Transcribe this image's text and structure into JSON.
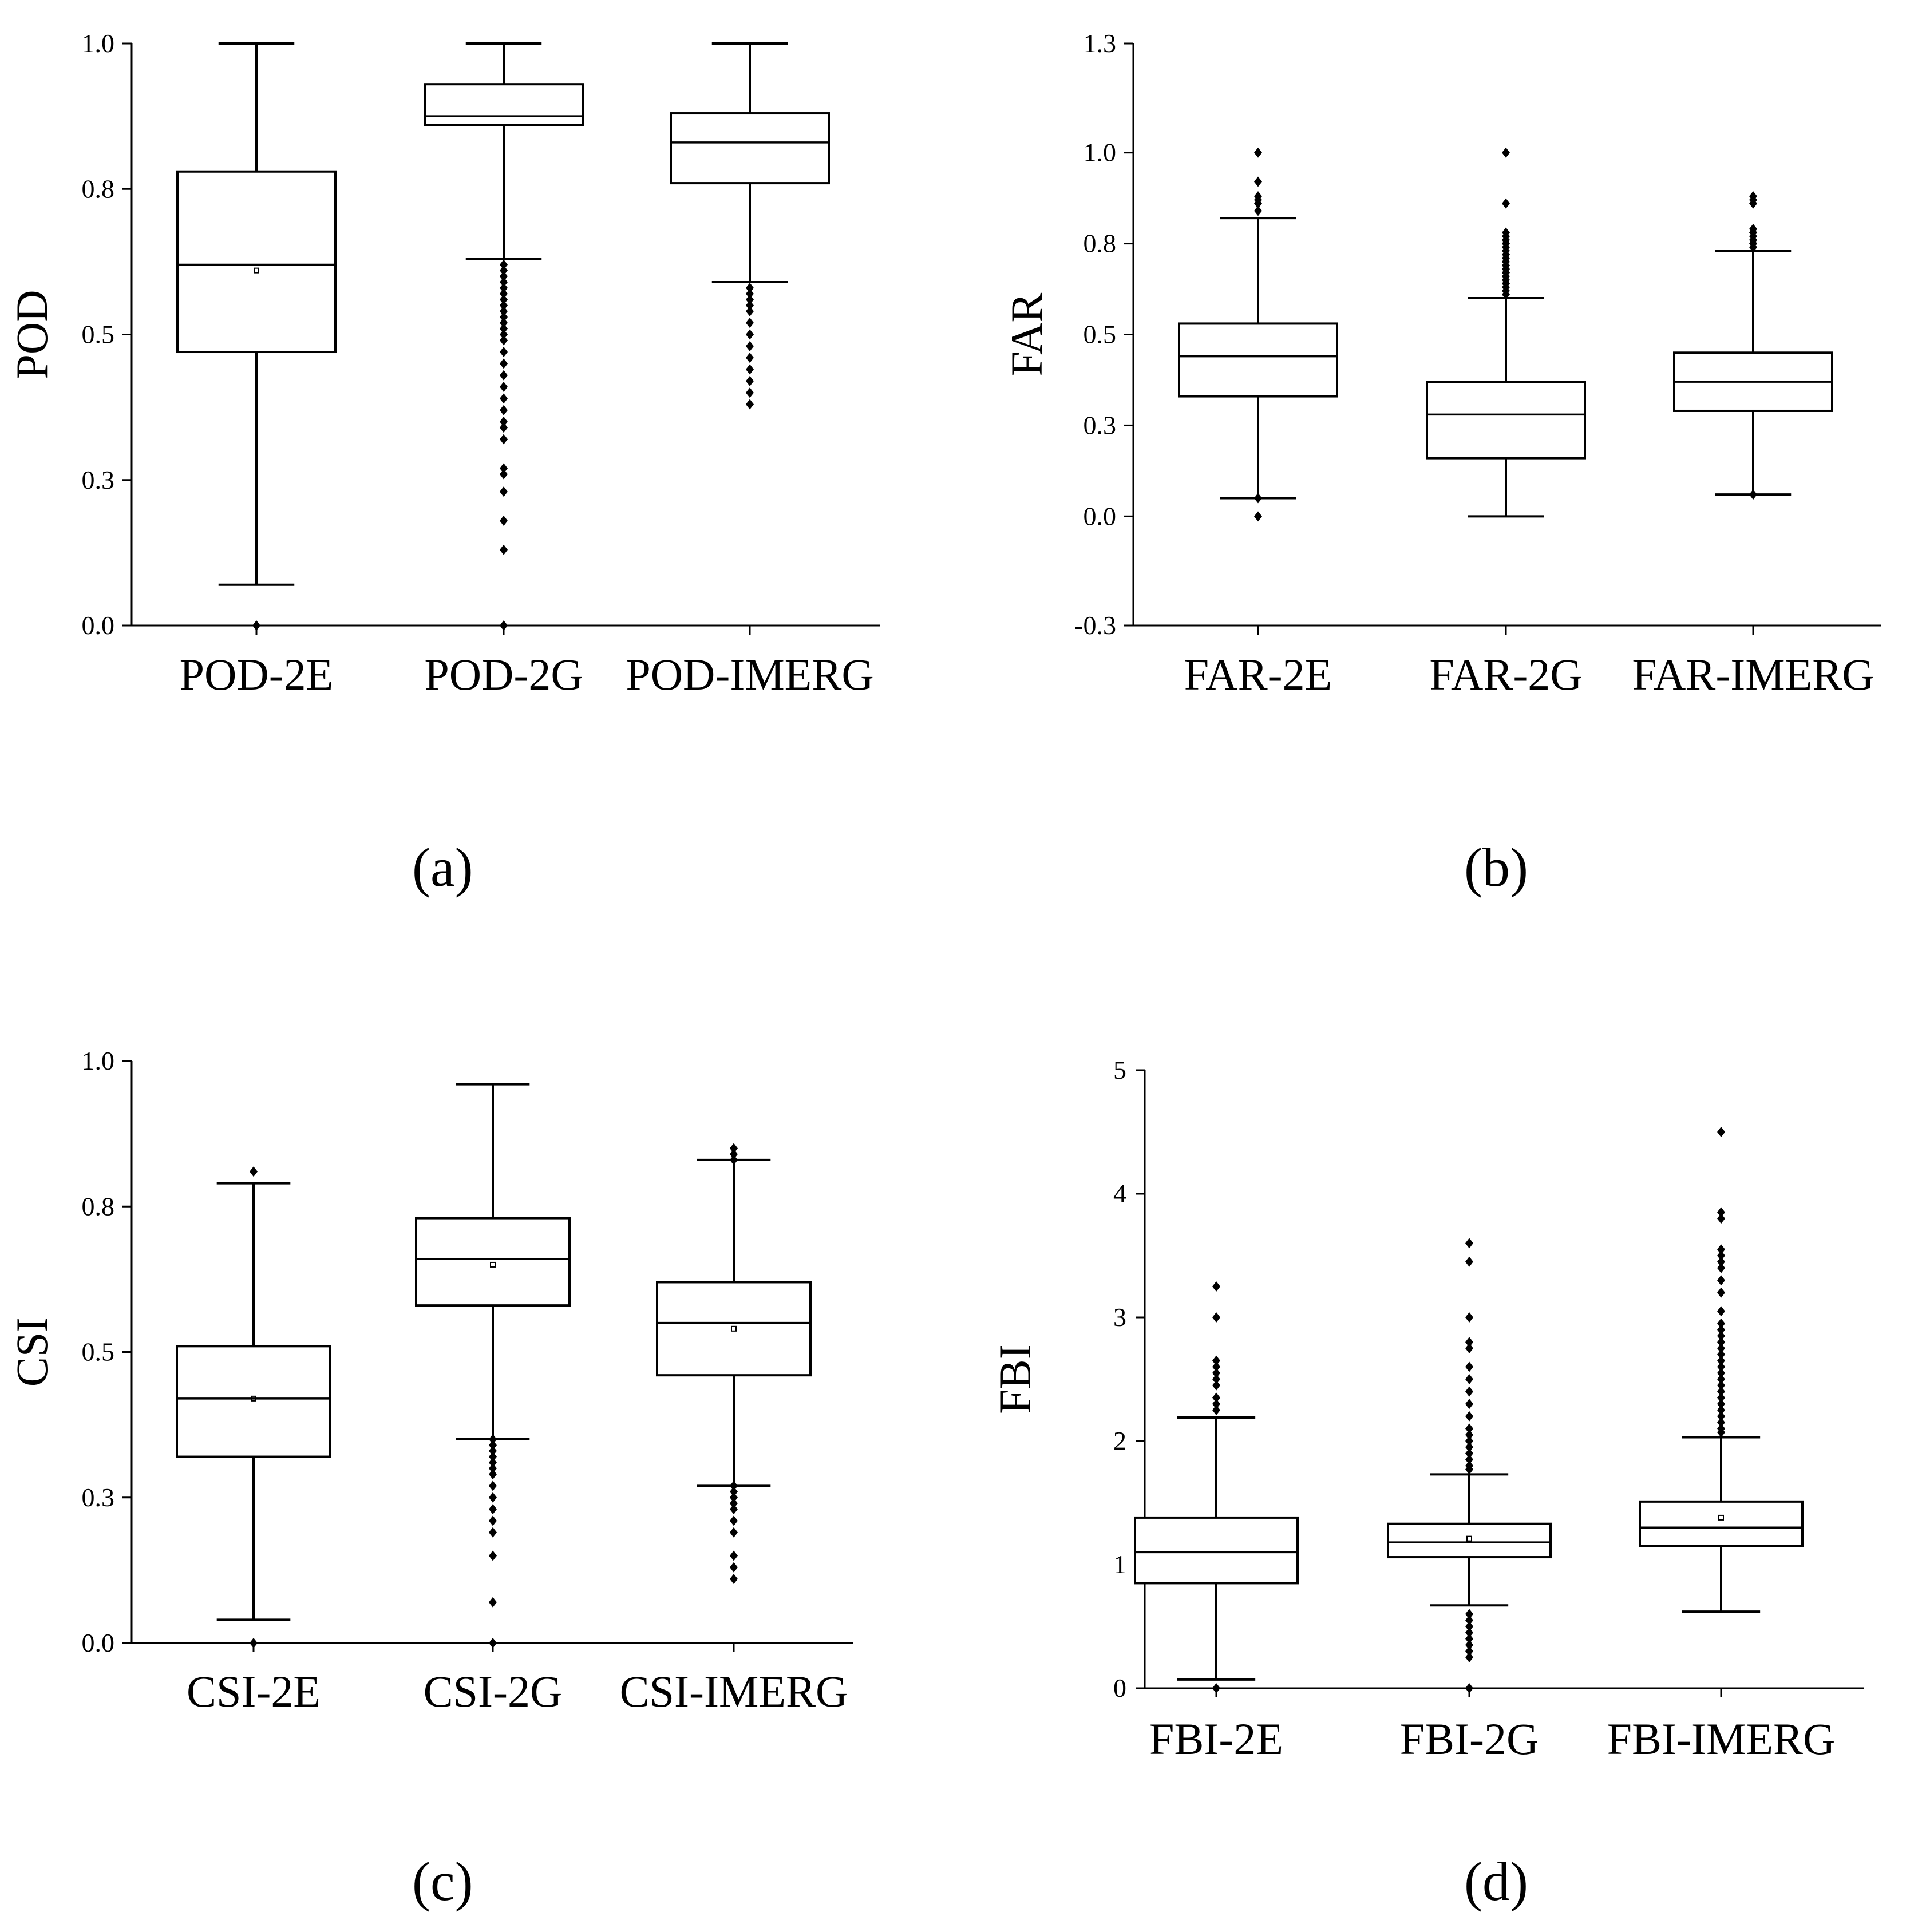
{
  "figure": {
    "panels": [
      {
        "label": "(a)"
      },
      {
        "label": "(b)"
      },
      {
        "label": "(c)"
      },
      {
        "label": "(d)"
      }
    ]
  },
  "chart_data": [
    {
      "type": "box",
      "panel": "(a)",
      "ylabel": "POD",
      "ylim": [
        0.0,
        1.0
      ],
      "yticks": [
        0.0,
        0.25,
        0.5,
        0.75,
        1.0
      ],
      "ytick_labels": [
        "0.0",
        "0.3",
        "0.5",
        "0.8",
        "1.0"
      ],
      "categories": [
        "POD-2E",
        "POD-2G",
        "POD-IMERG"
      ],
      "boxes": [
        {
          "name": "POD-2E",
          "whisker_low": 0.07,
          "q1": 0.47,
          "median": 0.62,
          "mean": 0.61,
          "q3": 0.78,
          "whisker_high": 1.0,
          "outliers": [
            0.0
          ]
        },
        {
          "name": "POD-2G",
          "whisker_low": 0.63,
          "q1": 0.86,
          "median": 0.875,
          "q3": 0.93,
          "whisker_high": 1.0,
          "outliers": [
            0.62,
            0.61,
            0.6,
            0.59,
            0.58,
            0.57,
            0.56,
            0.55,
            0.54,
            0.53,
            0.52,
            0.51,
            0.5,
            0.49,
            0.47,
            0.45,
            0.43,
            0.41,
            0.39,
            0.37,
            0.35,
            0.34,
            0.32,
            0.27,
            0.26,
            0.23,
            0.18,
            0.13,
            0.0
          ]
        },
        {
          "name": "POD-IMERG",
          "whisker_low": 0.59,
          "q1": 0.76,
          "median": 0.83,
          "q3": 0.88,
          "whisker_high": 1.0,
          "outliers": [
            0.58,
            0.57,
            0.56,
            0.55,
            0.54,
            0.52,
            0.5,
            0.48,
            0.46,
            0.44,
            0.42,
            0.4,
            0.38
          ]
        }
      ]
    },
    {
      "type": "box",
      "panel": "(b)",
      "ylabel": "FAR",
      "ylim": [
        -0.3,
        1.3
      ],
      "yticks": [
        -0.3,
        0.0,
        0.25,
        0.5,
        0.75,
        1.0,
        1.3
      ],
      "ytick_labels": [
        "-0.3",
        "0.0",
        "0.3",
        "0.5",
        "0.8",
        "1.0",
        "1.3"
      ],
      "categories": [
        "FAR-2E",
        "FAR-2G",
        "FAR-IMERG"
      ],
      "boxes": [
        {
          "name": "FAR-2E",
          "whisker_low": 0.05,
          "q1": 0.33,
          "median": 0.44,
          "q3": 0.53,
          "whisker_high": 0.82,
          "outliers": [
            1.0,
            0.92,
            0.88,
            0.87,
            0.86,
            0.84,
            0.05,
            0.0
          ]
        },
        {
          "name": "FAR-2G",
          "whisker_low": 0.0,
          "q1": 0.16,
          "median": 0.28,
          "q3": 0.37,
          "whisker_high": 0.6,
          "outliers": [
            1.0,
            0.86,
            0.78,
            0.77,
            0.76,
            0.75,
            0.74,
            0.73,
            0.72,
            0.71,
            0.7,
            0.69,
            0.68,
            0.67,
            0.66,
            0.65,
            0.64,
            0.63,
            0.62,
            0.61
          ]
        },
        {
          "name": "FAR-IMERG",
          "whisker_low": 0.06,
          "q1": 0.29,
          "median": 0.37,
          "q3": 0.45,
          "whisker_high": 0.73,
          "outliers": [
            0.88,
            0.87,
            0.86,
            0.79,
            0.78,
            0.77,
            0.76,
            0.75,
            0.74,
            0.06
          ]
        }
      ]
    },
    {
      "type": "box",
      "panel": "(c)",
      "ylabel": "CSI",
      "ylim": [
        0.0,
        1.0
      ],
      "yticks": [
        0.0,
        0.25,
        0.5,
        0.75,
        1.0
      ],
      "ytick_labels": [
        "0.0",
        "0.3",
        "0.5",
        "0.8",
        "1.0"
      ],
      "categories": [
        "CSI-2E",
        "CSI-2G",
        "CSI-IMERG"
      ],
      "boxes": [
        {
          "name": "CSI-2E",
          "whisker_low": 0.04,
          "q1": 0.32,
          "median": 0.42,
          "mean": 0.42,
          "q3": 0.51,
          "whisker_high": 0.79,
          "outliers": [
            0.81,
            0.0
          ]
        },
        {
          "name": "CSI-2G",
          "whisker_low": 0.35,
          "q1": 0.58,
          "median": 0.66,
          "mean": 0.65,
          "q3": 0.73,
          "whisker_high": 0.96,
          "outliers": [
            0.35,
            0.34,
            0.33,
            0.32,
            0.31,
            0.3,
            0.29,
            0.27,
            0.25,
            0.23,
            0.21,
            0.19,
            0.15,
            0.07,
            0.0
          ]
        },
        {
          "name": "CSI-IMERG",
          "whisker_low": 0.27,
          "q1": 0.46,
          "median": 0.55,
          "mean": 0.54,
          "q3": 0.62,
          "whisker_high": 0.83,
          "outliers": [
            0.85,
            0.84,
            0.83,
            0.27,
            0.26,
            0.25,
            0.24,
            0.23,
            0.21,
            0.19,
            0.15,
            0.13,
            0.11
          ]
        }
      ]
    },
    {
      "type": "box",
      "panel": "(d)",
      "ylabel": "FBI",
      "ylim": [
        0,
        5
      ],
      "yticks": [
        0,
        1,
        2,
        3,
        4,
        5
      ],
      "ytick_labels": [
        "0",
        "1",
        "2",
        "3",
        "4",
        "5"
      ],
      "categories": [
        "FBI-2E",
        "FBI-2G",
        "FBI-IMERG"
      ],
      "boxes": [
        {
          "name": "FBI-2E",
          "whisker_low": 0.07,
          "q1": 0.85,
          "median": 1.1,
          "q3": 1.38,
          "whisker_high": 2.19,
          "outliers": [
            3.25,
            3.0,
            2.65,
            2.6,
            2.55,
            2.5,
            2.45,
            2.35,
            2.3,
            2.25,
            0.0
          ]
        },
        {
          "name": "FBI-2G",
          "whisker_low": 0.67,
          "q1": 1.06,
          "median": 1.18,
          "mean": 1.21,
          "q3": 1.33,
          "whisker_high": 1.73,
          "outliers": [
            3.6,
            3.45,
            3.0,
            2.8,
            2.75,
            2.6,
            2.5,
            2.4,
            2.3,
            2.2,
            2.1,
            2.05,
            2.0,
            1.95,
            1.9,
            1.85,
            1.8,
            1.77,
            0.6,
            0.55,
            0.5,
            0.45,
            0.4,
            0.35,
            0.3,
            0.25,
            0.0
          ]
        },
        {
          "name": "FBI-IMERG",
          "whisker_low": 0.62,
          "q1": 1.15,
          "median": 1.3,
          "mean": 1.38,
          "q3": 1.51,
          "whisker_high": 2.03,
          "outliers": [
            4.5,
            3.85,
            3.8,
            3.55,
            3.5,
            3.45,
            3.4,
            3.3,
            3.2,
            3.05,
            2.95,
            2.9,
            2.85,
            2.8,
            2.75,
            2.7,
            2.65,
            2.6,
            2.55,
            2.5,
            2.45,
            2.4,
            2.35,
            2.3,
            2.25,
            2.2,
            2.15,
            2.1,
            2.07
          ]
        }
      ]
    }
  ]
}
